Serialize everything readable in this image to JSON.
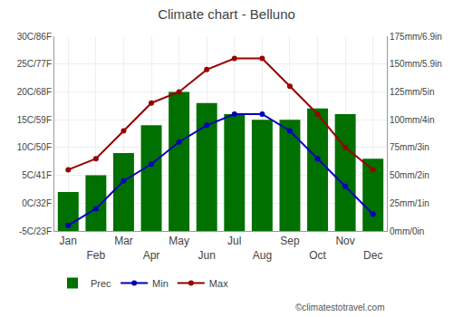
{
  "chart_data": {
    "type": "bar",
    "title": "Climate chart - Belluno",
    "categories": [
      "Jan",
      "Feb",
      "Mar",
      "Apr",
      "May",
      "Jun",
      "Jul",
      "Aug",
      "Sep",
      "Oct",
      "Nov",
      "Dec"
    ],
    "series": [
      {
        "name": "Prec",
        "type": "bar",
        "color": "#007000",
        "axis": "y2",
        "values": [
          35,
          50,
          70,
          95,
          125,
          115,
          105,
          100,
          100,
          110,
          105,
          65
        ]
      },
      {
        "name": "Min",
        "type": "line",
        "color": "#0000bb",
        "marker": "circle",
        "line_style": "solid",
        "values": [
          -4,
          -1,
          4,
          7,
          11,
          14,
          16,
          16,
          13,
          8,
          3,
          -2
        ]
      },
      {
        "name": "Max",
        "type": "line",
        "color": "#990000",
        "marker": "circle",
        "line_style": "solid",
        "values": [
          6,
          8,
          13,
          18,
          20,
          24,
          26,
          26,
          21,
          16,
          10,
          6
        ]
      }
    ],
    "ylim": [
      -5,
      30
    ],
    "yticks": [
      {
        "value": -5,
        "label": "-5C/23F"
      },
      {
        "value": 0,
        "label": "0C/32F"
      },
      {
        "value": 5,
        "label": "5C/41F"
      },
      {
        "value": 10,
        "label": "10C/50F"
      },
      {
        "value": 15,
        "label": "15C/59F"
      },
      {
        "value": 20,
        "label": "20C/68F"
      },
      {
        "value": 25,
        "label": "25C/77F"
      },
      {
        "value": 30,
        "label": "30C/86F"
      }
    ],
    "y2lim": [
      0,
      175
    ],
    "y2ticks": [
      {
        "value": 0,
        "label": "0mm/0in"
      },
      {
        "value": 25,
        "label": "25mm/1in"
      },
      {
        "value": 50,
        "label": "50mm/2in"
      },
      {
        "value": 75,
        "label": "75mm/3in"
      },
      {
        "value": 100,
        "label": "100mm/4in"
      },
      {
        "value": 125,
        "label": "125mm/5in"
      },
      {
        "value": 150,
        "label": "150mm/5.9in"
      },
      {
        "value": 175,
        "label": "175mm/6.9in"
      }
    ],
    "grid": true,
    "legend": "bottom",
    "annotations": [
      "©climatestotravel.com"
    ]
  }
}
